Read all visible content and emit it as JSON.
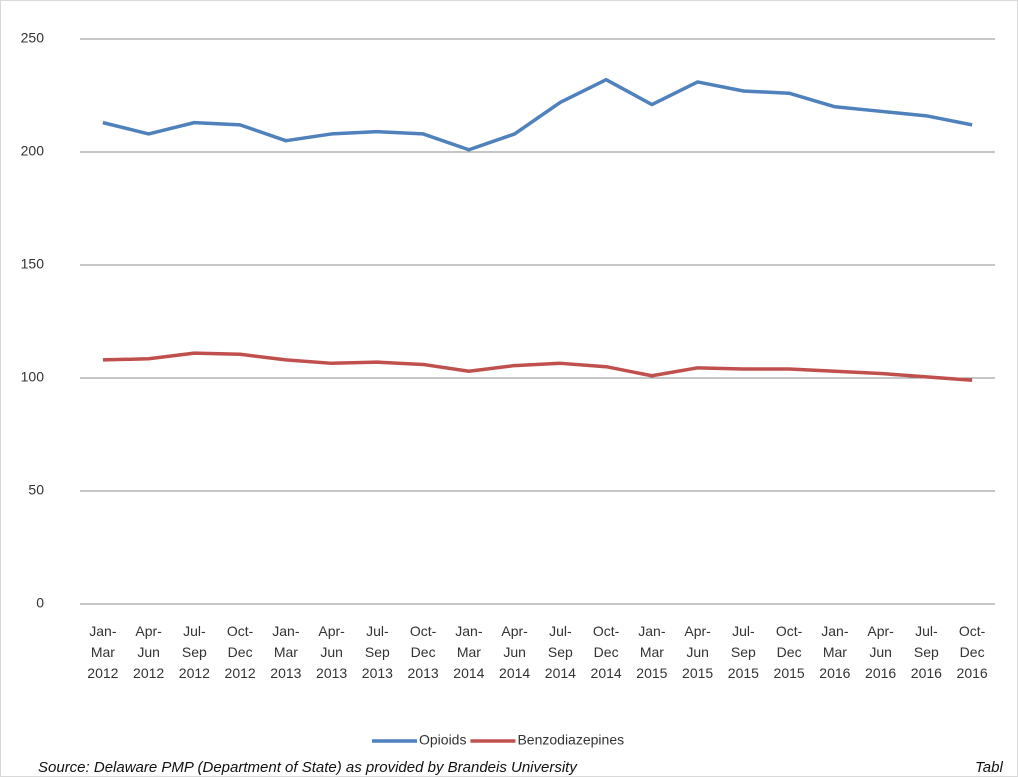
{
  "chart_data": {
    "type": "line",
    "categories": [
      "Jan-Mar 2012",
      "Apr-Jun 2012",
      "Jul-Sep 2012",
      "Oct-Dec 2012",
      "Jan-Mar 2013",
      "Apr-Jun 2013",
      "Jul-Sep 2013",
      "Oct-Dec 2013",
      "Jan-Mar 2014",
      "Apr-Jun 2014",
      "Jul-Sep 2014",
      "Oct-Dec 2014",
      "Jan-Mar 2015",
      "Apr-Jun 2015",
      "Jul-Sep 2015",
      "Oct-Dec 2015",
      "Jan-Mar 2016",
      "Apr-Jun 2016",
      "Jul-Sep 2016",
      "Oct-Dec 2016"
    ],
    "series": [
      {
        "name": "Opioids",
        "color": "#4f81bd",
        "values": [
          213,
          208,
          213,
          212,
          205,
          208,
          209,
          208,
          201,
          208,
          222,
          232,
          221,
          231,
          227,
          226,
          220,
          218,
          216,
          212
        ]
      },
      {
        "name": "Benzodiazepines",
        "color": "#c0504d",
        "values": [
          108,
          108.5,
          111,
          110.5,
          108,
          106.5,
          107,
          106,
          103,
          105.5,
          106.5,
          105,
          101,
          104.5,
          104,
          104,
          103,
          102,
          100.5,
          99
        ]
      }
    ],
    "ylim": [
      0,
      250
    ],
    "yticks": [
      0,
      50,
      100,
      150,
      200,
      250
    ],
    "grid": true,
    "legend": "bottom",
    "annotations": [
      "Source: Delaware PMP (Department of State) as provided by Brandeis University",
      "Tabl"
    ]
  }
}
